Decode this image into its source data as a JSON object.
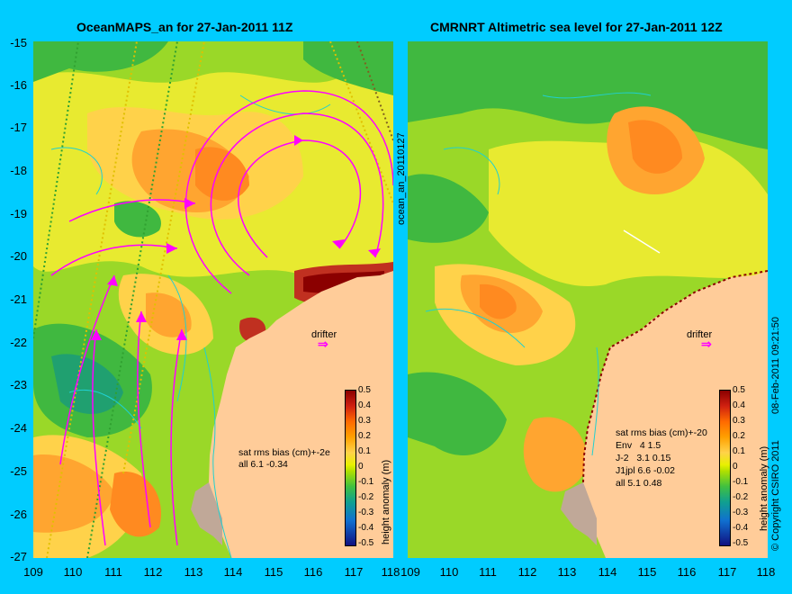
{
  "left_panel": {
    "title": "OceanMAPS_an for 27-Jan-2011 11Z",
    "side_label": "ocean_an_20110127",
    "stats_header": "sat rms bias (cm)+-2e",
    "stats_rows": [
      "all 6.1 -0.34"
    ],
    "drifter_label": "drifter"
  },
  "right_panel": {
    "title": "CMRNRT Altimetric sea level  for 27-Jan-2011 12Z",
    "stats_header": "sat rms bias (cm)+-20",
    "stats_rows": [
      "Env   4 1.5",
      "J-2   3.1 0.15",
      "J1jpl 6.6 -0.02",
      "all 5.1 0.48"
    ],
    "drifter_label": "drifter",
    "side_label": "08-Feb-2011 09:21:50",
    "copyright": "© Copyright CSIRO 2011"
  },
  "axes": {
    "lat_ticks": [
      "-15",
      "-16",
      "-17",
      "-18",
      "-19",
      "-20",
      "-21",
      "-22",
      "-23",
      "-24",
      "-25",
      "-26",
      "-27"
    ],
    "lon_ticks": [
      "109",
      "110",
      "111",
      "112",
      "113",
      "114",
      "115",
      "116",
      "117",
      "118"
    ]
  },
  "colorbar": {
    "label": "height anomaly (m)",
    "ticks": [
      "0.5",
      "0.4",
      "0.3",
      "0.2",
      "0.1",
      "0",
      "-0.1",
      "-0.2",
      "-0.3",
      "-0.4",
      "-0.5"
    ]
  },
  "colors": {
    "background": "#00ccff",
    "land": "#ffcc99",
    "high": "#8b0000",
    "low": "#101080",
    "arrows": "#ff00ff"
  }
}
